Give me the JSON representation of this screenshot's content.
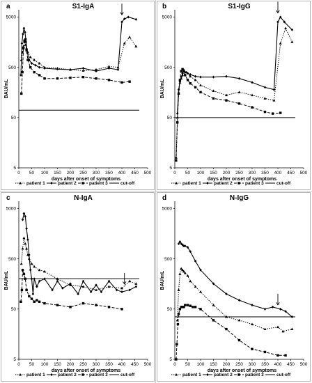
{
  "colors": {
    "line": "#000000",
    "frame": "#a0a0a0",
    "background": "#ffffff"
  },
  "chart_data": [
    {
      "panel": "a",
      "type": "line",
      "title": "S1-IgA",
      "xlabel": "days  after onset of symptoms",
      "ylabel": "BAU/mL",
      "x_ticks": [
        0,
        50,
        100,
        150,
        200,
        250,
        300,
        350,
        400,
        450,
        500
      ],
      "xlim": [
        0,
        500
      ],
      "y_scale": "log",
      "y_ticks": [
        5,
        50,
        500,
        5000
      ],
      "ylim": [
        5,
        7000
      ],
      "cutoff": 70,
      "arrow_x": 400,
      "legend": {
        "position": "bottom",
        "entries": [
          "patient 1",
          "patient 2",
          "patient 3",
          "cut-off"
        ]
      },
      "series": [
        {
          "name": "patient 1",
          "style": "dotted",
          "marker": "triangle",
          "x": [
            10,
            14,
            18,
            22,
            26,
            30,
            35,
            45,
            60,
            80,
            100,
            150,
            200,
            250,
            300,
            350,
            385,
            410,
            430,
            455
          ],
          "y": [
            700,
            1000,
            1300,
            1600,
            1400,
            1200,
            1000,
            800,
            700,
            600,
            500,
            480,
            450,
            430,
            450,
            520,
            500,
            1500,
            2000,
            1300
          ]
        },
        {
          "name": "patient 2",
          "style": "solid",
          "marker": "diamond",
          "x": [
            8,
            12,
            16,
            20,
            24,
            28,
            33,
            40,
            50,
            65,
            80,
            100,
            150,
            200,
            250,
            300,
            350,
            385,
            400,
            410,
            425,
            455
          ],
          "y": [
            350,
            1500,
            2300,
            3000,
            2500,
            1600,
            1000,
            700,
            600,
            550,
            500,
            480,
            460,
            450,
            480,
            420,
            480,
            450,
            4000,
            4600,
            5000,
            4500
          ]
        },
        {
          "name": "patient 3",
          "style": "dashed",
          "marker": "square",
          "x": [
            10,
            14,
            18,
            22,
            26,
            30,
            35,
            45,
            60,
            80,
            100,
            150,
            200,
            250,
            300,
            350,
            400,
            430
          ],
          "y": [
            150,
            400,
            1200,
            1700,
            1800,
            1100,
            700,
            500,
            400,
            350,
            300,
            300,
            310,
            320,
            300,
            280,
            250,
            260
          ]
        }
      ]
    },
    {
      "panel": "b",
      "type": "line",
      "title": "S1-IgG",
      "xlabel": "days  after onset of symptoms",
      "ylabel": "BAU/mL",
      "x_ticks": [
        0,
        50,
        100,
        150,
        200,
        250,
        300,
        350,
        400,
        450,
        500
      ],
      "xlim": [
        0,
        500
      ],
      "y_scale": "log",
      "y_ticks": [
        5,
        50,
        500,
        5000
      ],
      "ylim": [
        5,
        7000
      ],
      "cutoff": 50,
      "arrow_x": 400,
      "legend": {
        "position": "bottom",
        "entries": [
          "patient 1",
          "patient 2",
          "patient 3",
          "cut-off"
        ]
      },
      "series": [
        {
          "name": "patient 1",
          "style": "dotted",
          "marker": "triangle",
          "x": [
            5,
            10,
            15,
            20,
            25,
            30,
            35,
            45,
            60,
            80,
            100,
            150,
            200,
            250,
            300,
            350,
            385,
            410,
            430,
            455
          ],
          "y": [
            8,
            50,
            150,
            250,
            300,
            350,
            420,
            400,
            330,
            280,
            220,
            170,
            140,
            160,
            140,
            120,
            110,
            1500,
            3000,
            1600
          ]
        },
        {
          "name": "patient 2",
          "style": "solid",
          "marker": "diamond",
          "x": [
            10,
            15,
            20,
            25,
            30,
            35,
            40,
            50,
            60,
            80,
            100,
            150,
            200,
            250,
            300,
            350,
            385,
            400,
            410,
            425,
            455
          ],
          "y": [
            60,
            180,
            260,
            320,
            380,
            440,
            400,
            380,
            360,
            330,
            320,
            320,
            330,
            300,
            250,
            200,
            180,
            4000,
            5000,
            4000,
            2800
          ]
        },
        {
          "name": "patient 3",
          "style": "dashed",
          "marker": "square",
          "x": [
            5,
            10,
            15,
            20,
            25,
            30,
            35,
            40,
            50,
            60,
            80,
            100,
            150,
            200,
            250,
            300,
            350,
            380,
            410
          ],
          "y": [
            7,
            40,
            150,
            280,
            420,
            460,
            420,
            350,
            280,
            240,
            200,
            160,
            120,
            110,
            95,
            80,
            65,
            60,
            62
          ]
        }
      ]
    },
    {
      "panel": "c",
      "type": "line",
      "title": "N-IgA",
      "xlabel": "days  after onset of symptoms",
      "ylabel": "BAU/mL",
      "x_ticks": [
        0,
        50,
        100,
        150,
        200,
        250,
        300,
        350,
        400,
        450,
        500
      ],
      "xlim": [
        0,
        500
      ],
      "y_scale": "log",
      "y_ticks": [
        5,
        50,
        500,
        5000
      ],
      "ylim": [
        5,
        7000
      ],
      "cutoff": 200,
      "arrow_x": 410,
      "legend": {
        "position": "bottom",
        "entries": [
          "patient 1",
          "patient 2",
          "patient 3",
          "cut-off"
        ]
      },
      "series": [
        {
          "name": "patient 1",
          "style": "dotted",
          "marker": "triangle",
          "x": [
            10,
            15,
            20,
            25,
            30,
            35,
            40,
            50,
            60,
            80,
            100,
            150,
            200,
            250,
            300,
            350,
            400,
            430,
            455
          ],
          "y": [
            400,
            800,
            1300,
            1000,
            800,
            600,
            500,
            400,
            350,
            300,
            280,
            200,
            150,
            140,
            120,
            140,
            130,
            180,
            160
          ]
        },
        {
          "name": "patient 2",
          "style": "solid",
          "marker": "diamond",
          "x": [
            15,
            20,
            25,
            30,
            35,
            40,
            45,
            50,
            55,
            60,
            70,
            80,
            100,
            130,
            150,
            170,
            200,
            230,
            250,
            280,
            300,
            320,
            350,
            380,
            400,
            430,
            455
          ],
          "y": [
            3000,
            4000,
            3500,
            2000,
            1200,
            600,
            300,
            200,
            100,
            200,
            140,
            180,
            200,
            120,
            180,
            130,
            160,
            100,
            180,
            110,
            150,
            110,
            180,
            120,
            110,
            120,
            140
          ]
        },
        {
          "name": "patient 3",
          "style": "dashed",
          "marker": "square",
          "x": [
            8,
            12,
            15,
            20,
            25,
            30,
            40,
            50,
            60,
            70,
            80,
            100,
            150,
            200,
            250,
            300,
            350,
            400
          ],
          "y": [
            70,
            120,
            300,
            250,
            200,
            120,
            90,
            80,
            70,
            75,
            70,
            65,
            60,
            55,
            65,
            60,
            55,
            50
          ]
        }
      ]
    },
    {
      "panel": "d",
      "type": "line",
      "title": "N-IgG",
      "xlabel": "days  after onset of symptoms",
      "ylabel": "BAU/mL",
      "x_ticks": [
        0,
        50,
        100,
        150,
        200,
        250,
        300,
        350,
        400,
        450,
        500
      ],
      "xlim": [
        0,
        500
      ],
      "y_scale": "log",
      "y_ticks": [
        5,
        50,
        500,
        5000
      ],
      "ylim": [
        5,
        7000
      ],
      "cutoff": 35,
      "arrow_x": 400,
      "legend": {
        "position": "bottom",
        "entries": [
          "patient 1",
          "patient 2",
          "patient 3",
          "cut-off"
        ]
      },
      "series": [
        {
          "name": "patient 1",
          "style": "dotted",
          "marker": "triangle",
          "x": [
            10,
            15,
            20,
            25,
            30,
            35,
            40,
            50,
            60,
            80,
            100,
            150,
            200,
            250,
            300,
            350,
            400,
            420,
            455
          ],
          "y": [
            30,
            120,
            250,
            320,
            300,
            280,
            260,
            230,
            180,
            140,
            110,
            60,
            35,
            30,
            25,
            20,
            22,
            18,
            20
          ]
        },
        {
          "name": "patient 2",
          "style": "solid",
          "marker": "diamond",
          "x": [
            15,
            20,
            25,
            30,
            35,
            40,
            50,
            60,
            80,
            100,
            150,
            200,
            250,
            300,
            350,
            380,
            410,
            430,
            455
          ],
          "y": [
            1000,
            1100,
            1000,
            950,
            900,
            900,
            850,
            700,
            450,
            300,
            160,
            100,
            75,
            60,
            50,
            55,
            50,
            45,
            35
          ]
        },
        {
          "name": "patient 3",
          "style": "dashed",
          "marker": "square",
          "x": [
            5,
            8,
            12,
            15,
            20,
            25,
            30,
            35,
            40,
            50,
            60,
            70,
            80,
            100,
            150,
            200,
            250,
            300,
            350,
            400,
            430
          ],
          "y": [
            5,
            10,
            25,
            40,
            50,
            55,
            55,
            55,
            60,
            60,
            58,
            55,
            55,
            50,
            30,
            20,
            12,
            8,
            7,
            6,
            6
          ]
        }
      ]
    }
  ]
}
